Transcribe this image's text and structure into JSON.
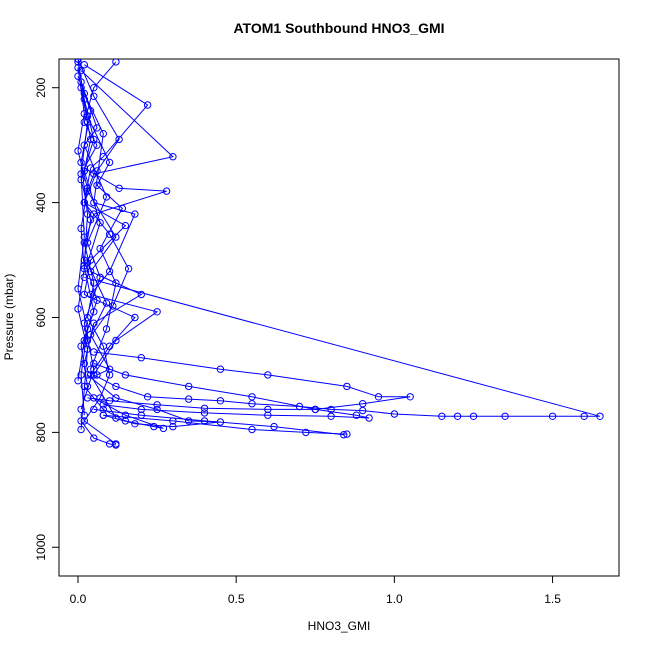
{
  "chart_data": {
    "type": "line",
    "title": "ATOM1 Southbound HNO3_GMI",
    "xlabel": "HNO3_GMI",
    "ylabel": "Pressure (mbar)",
    "xlim": [
      -0.06,
      1.71
    ],
    "ylim": [
      1050,
      150
    ],
    "y_reversed": true,
    "grid": false,
    "legend": "none",
    "x_ticks": [
      0.0,
      0.5,
      1.0,
      1.5
    ],
    "x_tick_labels": [
      "0.0",
      "0.5",
      "1.0",
      "1.5"
    ],
    "y_ticks": [
      200,
      400,
      600,
      800,
      1000
    ],
    "y_tick_labels": [
      "200",
      "400",
      "600",
      "800",
      "1000"
    ],
    "marker": "open-circle",
    "color": "#0000ff",
    "series": [
      {
        "x": [
          0.12,
          0.05,
          0.02,
          0.06,
          0.02,
          0.13,
          0.28,
          0.05,
          0.02,
          0.05,
          0.03,
          0.08,
          0.1,
          0.07,
          0.02,
          0.12
        ],
        "y": [
          155,
          200,
          260,
          300,
          340,
          375,
          380,
          420,
          470,
          540,
          600,
          650,
          700,
          740,
          780,
          820
        ]
      },
      {
        "x": [
          0.02,
          0.22,
          0.08,
          0.04,
          0.02,
          0.15,
          0.04,
          0.02,
          0.18,
          0.1,
          0.04,
          0.12
        ],
        "y": [
          160,
          230,
          320,
          340,
          400,
          440,
          500,
          560,
          600,
          650,
          700,
          775
        ]
      },
      {
        "x": [
          0.01,
          0.3,
          0.05,
          0.03,
          0.12,
          0.04,
          0.2,
          0.05,
          0.02
        ],
        "y": [
          170,
          320,
          350,
          380,
          460,
          520,
          560,
          610,
          680
        ]
      },
      {
        "x": [
          0.02,
          0.08,
          0.05,
          0.18,
          0.1,
          0.04,
          0.25,
          0.12,
          0.05
        ],
        "y": [
          210,
          280,
          400,
          420,
          520,
          560,
          590,
          640,
          700
        ]
      },
      {
        "x": [
          0.0,
          0.03,
          0.01,
          0.02,
          0.0,
          0.03,
          0.01,
          0.02
        ],
        "y": [
          150,
          260,
          350,
          460,
          550,
          620,
          700,
          770
        ]
      },
      {
        "x": [
          0.02,
          1.65,
          1.6,
          1.5,
          1.35,
          1.25,
          1.2,
          1.15,
          1.0,
          0.9,
          0.8,
          0.7,
          0.55,
          0.45,
          0.35,
          0.22,
          0.12,
          0.05
        ],
        "y": [
          530,
          772,
          772,
          772,
          772,
          772,
          772,
          772,
          768,
          762,
          760,
          755,
          750,
          745,
          742,
          738,
          720,
          700
        ]
      },
      {
        "x": [
          0.05,
          0.2,
          0.45,
          0.6,
          0.85,
          0.95,
          1.05,
          0.9,
          0.75,
          0.6,
          0.4,
          0.25,
          0.1,
          0.03
        ],
        "y": [
          660,
          670,
          690,
          700,
          720,
          738,
          738,
          750,
          760,
          760,
          758,
          752,
          745,
          740
        ]
      },
      {
        "x": [
          0.05,
          0.15,
          0.35,
          0.55,
          0.75,
          0.88,
          0.92,
          0.8,
          0.6,
          0.4,
          0.2,
          0.08
        ],
        "y": [
          680,
          700,
          720,
          738,
          760,
          770,
          775,
          772,
          770,
          766,
          760,
          752
        ]
      },
      {
        "x": [
          0.08,
          0.3,
          0.55,
          0.72,
          0.85
        ],
        "y": [
          770,
          780,
          795,
          800,
          803
        ]
      },
      {
        "x": [
          0.05,
          0.2,
          0.4,
          0.62,
          0.84
        ],
        "y": [
          760,
          770,
          780,
          790,
          804
        ]
      },
      {
        "x": [
          0.03,
          0.12,
          0.25,
          0.35,
          0.45,
          0.3,
          0.18,
          0.08
        ],
        "y": [
          700,
          740,
          760,
          780,
          782,
          790,
          785,
          770
        ]
      },
      {
        "x": [
          0.02,
          0.08,
          0.15,
          0.24,
          0.27,
          0.15,
          0.05
        ],
        "y": [
          720,
          760,
          780,
          790,
          793,
          770,
          740
        ]
      },
      {
        "x": [
          0.01,
          0.05,
          0.1,
          0.12
        ],
        "y": [
          780,
          810,
          820,
          822
        ]
      },
      {
        "x": [
          0.0,
          0.04,
          0.01,
          0.03,
          0.02,
          0.05,
          0.01,
          0.03
        ],
        "y": [
          180,
          240,
          330,
          420,
          510,
          590,
          650,
          720
        ]
      },
      {
        "x": [
          0.01,
          0.06,
          0.02,
          0.09,
          0.03,
          0.07,
          0.02,
          0.05,
          0.01
        ],
        "y": [
          190,
          270,
          300,
          390,
          470,
          530,
          610,
          690,
          760
        ]
      },
      {
        "x": [
          0.0,
          0.02,
          0.05,
          0.01,
          0.04,
          0.02,
          0.06,
          0.02,
          0.0
        ],
        "y": [
          155,
          220,
          290,
          360,
          430,
          500,
          570,
          640,
          710
        ]
      },
      {
        "x": [
          0.0,
          0.02,
          0.0,
          0.03,
          0.01,
          0.02,
          0.0,
          0.03,
          0.01
        ],
        "y": [
          165,
          245,
          310,
          375,
          445,
          515,
          585,
          655,
          795
        ]
      },
      {
        "x": [
          0.03,
          0.1,
          0.06,
          0.14,
          0.07,
          0.12,
          0.09,
          0.04
        ],
        "y": [
          250,
          330,
          370,
          410,
          480,
          540,
          620,
          690
        ]
      },
      {
        "x": [
          0.01,
          0.04,
          0.02,
          0.07,
          0.03,
          0.09,
          0.04,
          0.1,
          0.06
        ],
        "y": [
          200,
          290,
          345,
          435,
          505,
          575,
          630,
          690,
          700
        ]
      },
      {
        "x": [
          0.0,
          0.05,
          0.13,
          0.06,
          0.02,
          0.1,
          0.16,
          0.11,
          0.03
        ],
        "y": [
          150,
          215,
          290,
          345,
          400,
          455,
          515,
          580,
          640
        ]
      }
    ]
  }
}
